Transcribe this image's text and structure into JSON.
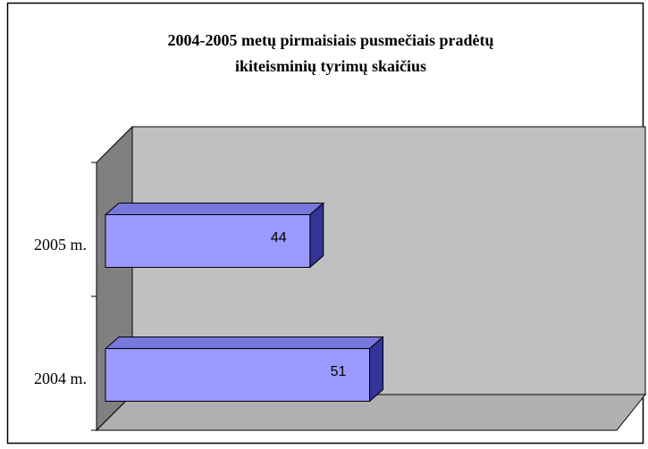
{
  "chart_data": {
    "type": "bar3d_horizontal",
    "title": [
      "2004-2005 metų pirmaisiais pusmečiais pradėtų",
      "ikiteisminių tyrimų skaičius"
    ],
    "categories": [
      "2005 m.",
      "2004 m."
    ],
    "values": [
      44,
      51
    ],
    "color": "#9999ff",
    "xlim": [
      20,
      80
    ]
  }
}
